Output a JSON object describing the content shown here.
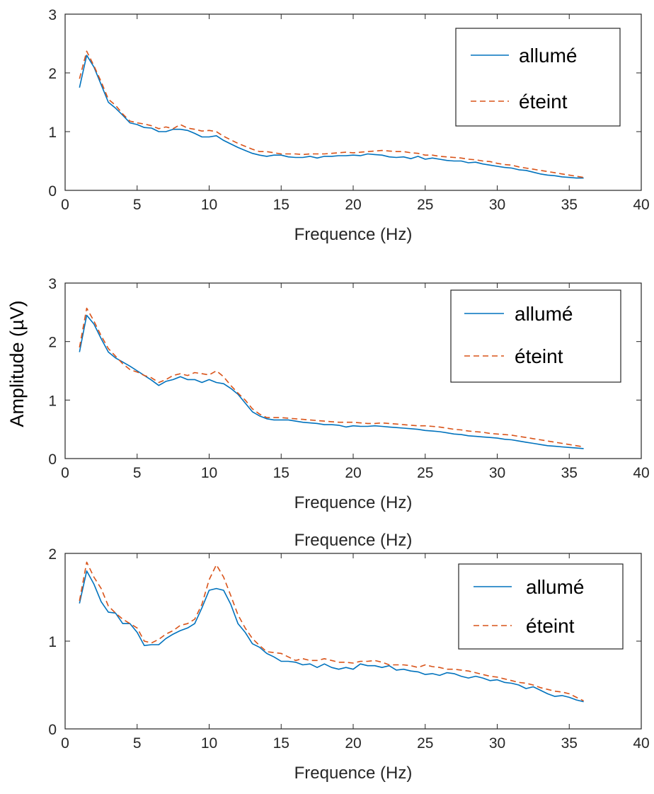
{
  "figure": {
    "shared_ylabel": "Amplitude (µV)"
  },
  "chart_data": [
    {
      "type": "line",
      "title": "",
      "xlabel": "Frequence (Hz)",
      "ylabel": "",
      "xlim": [
        0,
        40
      ],
      "ylim": [
        0,
        3
      ],
      "xticks": [
        0,
        5,
        10,
        15,
        20,
        25,
        30,
        35,
        40
      ],
      "yticks": [
        0,
        1,
        2,
        3
      ],
      "grid": false,
      "legend_position": "top-right",
      "x": [
        1,
        1.5,
        2,
        2.5,
        3,
        3.5,
        4,
        4.5,
        5,
        5.5,
        6,
        6.5,
        7,
        7.5,
        8,
        8.5,
        9,
        9.5,
        10,
        10.5,
        11,
        11.5,
        12,
        12.5,
        13,
        13.5,
        14,
        14.5,
        15,
        15.5,
        16,
        16.5,
        17,
        17.5,
        18,
        18.5,
        19,
        19.5,
        20,
        20.5,
        21,
        21.5,
        22,
        22.5,
        23,
        23.5,
        24,
        24.5,
        25,
        25.5,
        26,
        26.5,
        27,
        27.5,
        28,
        28.5,
        29,
        29.5,
        30,
        30.5,
        31,
        31.5,
        32,
        32.5,
        33,
        33.5,
        34,
        34.5,
        35,
        35.5,
        36
      ],
      "series": [
        {
          "name": "allumé",
          "color": "#0072BD",
          "dash": "solid",
          "values": [
            1.75,
            2.3,
            2.1,
            1.8,
            1.5,
            1.4,
            1.28,
            1.15,
            1.12,
            1.07,
            1.06,
            1.0,
            1.0,
            1.04,
            1.04,
            1.02,
            0.97,
            0.91,
            0.91,
            0.93,
            0.85,
            0.79,
            0.73,
            0.68,
            0.63,
            0.6,
            0.58,
            0.6,
            0.6,
            0.57,
            0.56,
            0.56,
            0.58,
            0.55,
            0.58,
            0.58,
            0.59,
            0.59,
            0.6,
            0.59,
            0.62,
            0.61,
            0.6,
            0.57,
            0.56,
            0.57,
            0.54,
            0.58,
            0.53,
            0.55,
            0.53,
            0.51,
            0.5,
            0.5,
            0.47,
            0.48,
            0.45,
            0.43,
            0.41,
            0.39,
            0.38,
            0.35,
            0.34,
            0.31,
            0.28,
            0.26,
            0.25,
            0.23,
            0.22,
            0.21,
            0.21
          ]
        },
        {
          "name": "éteint",
          "color": "#D95319",
          "dash": "dashed",
          "values": [
            1.9,
            2.37,
            2.12,
            1.85,
            1.55,
            1.45,
            1.3,
            1.18,
            1.15,
            1.13,
            1.1,
            1.05,
            1.08,
            1.05,
            1.12,
            1.06,
            1.04,
            1.01,
            1.02,
            1.0,
            0.92,
            0.86,
            0.8,
            0.75,
            0.7,
            0.66,
            0.66,
            0.64,
            0.62,
            0.62,
            0.62,
            0.61,
            0.62,
            0.62,
            0.62,
            0.63,
            0.64,
            0.65,
            0.64,
            0.65,
            0.66,
            0.67,
            0.68,
            0.67,
            0.66,
            0.66,
            0.64,
            0.63,
            0.6,
            0.6,
            0.58,
            0.57,
            0.56,
            0.55,
            0.53,
            0.52,
            0.5,
            0.49,
            0.46,
            0.44,
            0.43,
            0.4,
            0.38,
            0.36,
            0.34,
            0.32,
            0.3,
            0.28,
            0.26,
            0.24,
            0.22
          ]
        }
      ]
    },
    {
      "type": "line",
      "title": "",
      "xlabel": "Frequence (Hz)",
      "ylabel": "",
      "xlim": [
        0,
        40
      ],
      "ylim": [
        0,
        3
      ],
      "xticks": [
        0,
        5,
        10,
        15,
        20,
        25,
        30,
        35,
        40
      ],
      "yticks": [
        0,
        1,
        2,
        3
      ],
      "grid": false,
      "legend_position": "top-right",
      "x": [
        1,
        1.5,
        2,
        2.5,
        3,
        3.5,
        4,
        4.5,
        5,
        5.5,
        6,
        6.5,
        7,
        7.5,
        8,
        8.5,
        9,
        9.5,
        10,
        10.5,
        11,
        11.5,
        12,
        12.5,
        13,
        13.5,
        14,
        14.5,
        15,
        15.5,
        16,
        16.5,
        17,
        17.5,
        18,
        18.5,
        19,
        19.5,
        20,
        20.5,
        21,
        21.5,
        22,
        22.5,
        23,
        23.5,
        24,
        24.5,
        25,
        25.5,
        26,
        26.5,
        27,
        27.5,
        28,
        28.5,
        29,
        29.5,
        30,
        30.5,
        31,
        31.5,
        32,
        32.5,
        33,
        33.5,
        34,
        34.5,
        35,
        35.5,
        36
      ],
      "series": [
        {
          "name": "allumé",
          "color": "#0072BD",
          "dash": "solid",
          "values": [
            1.82,
            2.45,
            2.3,
            2.05,
            1.82,
            1.72,
            1.65,
            1.58,
            1.5,
            1.42,
            1.34,
            1.25,
            1.32,
            1.35,
            1.4,
            1.35,
            1.35,
            1.3,
            1.35,
            1.3,
            1.28,
            1.2,
            1.1,
            0.95,
            0.8,
            0.73,
            0.68,
            0.66,
            0.66,
            0.66,
            0.64,
            0.62,
            0.61,
            0.6,
            0.58,
            0.58,
            0.57,
            0.54,
            0.56,
            0.55,
            0.55,
            0.56,
            0.55,
            0.54,
            0.53,
            0.52,
            0.51,
            0.5,
            0.48,
            0.47,
            0.46,
            0.44,
            0.42,
            0.41,
            0.39,
            0.38,
            0.37,
            0.36,
            0.35,
            0.33,
            0.32,
            0.3,
            0.28,
            0.26,
            0.24,
            0.22,
            0.21,
            0.2,
            0.19,
            0.18,
            0.17
          ]
        },
        {
          "name": "éteint",
          "color": "#D95319",
          "dash": "dashed",
          "values": [
            1.9,
            2.57,
            2.35,
            2.1,
            1.88,
            1.75,
            1.62,
            1.52,
            1.48,
            1.42,
            1.38,
            1.3,
            1.35,
            1.42,
            1.45,
            1.42,
            1.47,
            1.45,
            1.43,
            1.5,
            1.4,
            1.25,
            1.12,
            1.0,
            0.85,
            0.76,
            0.7,
            0.7,
            0.7,
            0.69,
            0.68,
            0.67,
            0.66,
            0.65,
            0.64,
            0.63,
            0.62,
            0.62,
            0.62,
            0.61,
            0.6,
            0.6,
            0.61,
            0.6,
            0.59,
            0.58,
            0.57,
            0.56,
            0.56,
            0.55,
            0.54,
            0.52,
            0.5,
            0.49,
            0.47,
            0.46,
            0.45,
            0.43,
            0.42,
            0.41,
            0.4,
            0.38,
            0.36,
            0.34,
            0.32,
            0.3,
            0.28,
            0.26,
            0.24,
            0.22,
            0.2
          ]
        }
      ]
    },
    {
      "type": "line",
      "title": "Frequence (Hz)",
      "xlabel": "Frequence (Hz)",
      "ylabel": "",
      "xlim": [
        0,
        40
      ],
      "ylim": [
        0,
        2
      ],
      "xticks": [
        0,
        5,
        10,
        15,
        20,
        25,
        30,
        35,
        40
      ],
      "yticks": [
        0,
        1,
        2
      ],
      "grid": false,
      "legend_position": "top-right",
      "x": [
        1,
        1.5,
        2,
        2.5,
        3,
        3.5,
        4,
        4.5,
        5,
        5.5,
        6,
        6.5,
        7,
        7.5,
        8,
        8.5,
        9,
        9.5,
        10,
        10.5,
        11,
        11.5,
        12,
        12.5,
        13,
        13.5,
        14,
        14.5,
        15,
        15.5,
        16,
        16.5,
        17,
        17.5,
        18,
        18.5,
        19,
        19.5,
        20,
        20.5,
        21,
        21.5,
        22,
        22.5,
        23,
        23.5,
        24,
        24.5,
        25,
        25.5,
        26,
        26.5,
        27,
        27.5,
        28,
        28.5,
        29,
        29.5,
        30,
        30.5,
        31,
        31.5,
        32,
        32.5,
        33,
        33.5,
        34,
        34.5,
        35,
        35.5,
        36
      ],
      "series": [
        {
          "name": "allumé",
          "color": "#0072BD",
          "dash": "solid",
          "values": [
            1.43,
            1.8,
            1.65,
            1.45,
            1.33,
            1.32,
            1.2,
            1.2,
            1.1,
            0.95,
            0.96,
            0.96,
            1.03,
            1.08,
            1.12,
            1.15,
            1.2,
            1.38,
            1.58,
            1.6,
            1.58,
            1.42,
            1.2,
            1.1,
            0.97,
            0.93,
            0.86,
            0.82,
            0.77,
            0.77,
            0.76,
            0.73,
            0.74,
            0.7,
            0.74,
            0.7,
            0.68,
            0.7,
            0.68,
            0.74,
            0.72,
            0.72,
            0.7,
            0.72,
            0.67,
            0.68,
            0.66,
            0.65,
            0.62,
            0.63,
            0.61,
            0.64,
            0.63,
            0.6,
            0.58,
            0.6,
            0.58,
            0.55,
            0.56,
            0.53,
            0.52,
            0.5,
            0.46,
            0.48,
            0.44,
            0.4,
            0.37,
            0.38,
            0.36,
            0.33,
            0.31
          ]
        },
        {
          "name": "éteint",
          "color": "#D95319",
          "dash": "dashed",
          "values": [
            1.46,
            1.9,
            1.73,
            1.6,
            1.4,
            1.32,
            1.25,
            1.2,
            1.15,
            1.0,
            0.98,
            1.02,
            1.08,
            1.12,
            1.18,
            1.2,
            1.25,
            1.42,
            1.7,
            1.87,
            1.73,
            1.52,
            1.3,
            1.15,
            1.03,
            0.95,
            0.88,
            0.87,
            0.86,
            0.82,
            0.78,
            0.8,
            0.78,
            0.78,
            0.8,
            0.78,
            0.76,
            0.76,
            0.75,
            0.77,
            0.77,
            0.78,
            0.76,
            0.73,
            0.73,
            0.73,
            0.72,
            0.7,
            0.73,
            0.71,
            0.7,
            0.68,
            0.68,
            0.67,
            0.66,
            0.64,
            0.62,
            0.6,
            0.59,
            0.57,
            0.55,
            0.53,
            0.52,
            0.5,
            0.47,
            0.45,
            0.43,
            0.42,
            0.4,
            0.36,
            0.32
          ]
        }
      ]
    }
  ]
}
